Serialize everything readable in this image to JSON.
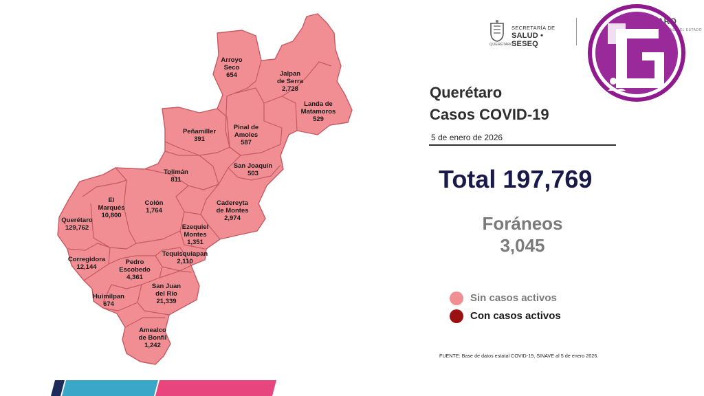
{
  "header": {
    "secretaria_line": "SECRETARÍA DE",
    "salud_line": "SALUD • SESEQ",
    "seal_caption": "QUERÉTARO",
    "state_logo": "QUERÉTARO",
    "state_logo_sub": "GOBIERNO DEL ESTADO"
  },
  "title": {
    "state": "Querétaro",
    "subtitle": "Casos COVID-19",
    "date": "5 de enero de 2026"
  },
  "total": "Total 197,769",
  "foraneos": {
    "label": "Foráneos",
    "value": "3,045"
  },
  "legend": [
    {
      "label": "Sin casos activos",
      "color": "#f08e93"
    },
    {
      "label": "Con casos activos",
      "color": "#9b1010"
    }
  ],
  "source": "FUENTE: Base de datos estatal COVID-19, SINAVE al  5 de enero 2026.",
  "map": {
    "fill_color": "#f08e93",
    "border_color": "#c45a62",
    "municipalities": [
      {
        "id": "arroyo-seco",
        "name": [
          "Arroyo",
          "Seco"
        ],
        "cases": "654"
      },
      {
        "id": "jalpan",
        "name": [
          "Jalpan",
          "de Serra"
        ],
        "cases": "2,728"
      },
      {
        "id": "landa",
        "name": [
          "Landa de",
          "Matamoros"
        ],
        "cases": "529"
      },
      {
        "id": "pinal",
        "name": [
          "Pinal de",
          "Amoles"
        ],
        "cases": "587"
      },
      {
        "id": "penamiller",
        "name": [
          "Peñamiller"
        ],
        "cases": "391"
      },
      {
        "id": "san-joaquin",
        "name": [
          "San Joaquín"
        ],
        "cases": "503"
      },
      {
        "id": "toliman",
        "name": [
          "Tolimán"
        ],
        "cases": "811"
      },
      {
        "id": "el-marques",
        "name": [
          "El",
          "Marqués"
        ],
        "cases": "10,800"
      },
      {
        "id": "colon",
        "name": [
          "Colón"
        ],
        "cases": "1,764"
      },
      {
        "id": "cadereyta",
        "name": [
          "Cadereyta",
          "de Montes"
        ],
        "cases": "2,974"
      },
      {
        "id": "queretaro",
        "name": [
          "Querétaro"
        ],
        "cases": "129,762"
      },
      {
        "id": "ezequiel",
        "name": [
          "Ezequiel",
          "Montes"
        ],
        "cases": "1,351"
      },
      {
        "id": "corregidora",
        "name": [
          "Corregidora"
        ],
        "cases": "12,144"
      },
      {
        "id": "tequisquiapan",
        "name": [
          "Tequisquiapan"
        ],
        "cases": "2,110"
      },
      {
        "id": "pedro-escobedo",
        "name": [
          "Pedro",
          "Escobedo"
        ],
        "cases": "4,361"
      },
      {
        "id": "san-juan",
        "name": [
          "San Juan",
          "del Río"
        ],
        "cases": "21,339"
      },
      {
        "id": "huimilpan",
        "name": [
          "Huimilpan"
        ],
        "cases": "674"
      },
      {
        "id": "amealco",
        "name": [
          "Amealco",
          "de Bonfil"
        ],
        "cases": "1,242"
      }
    ]
  }
}
